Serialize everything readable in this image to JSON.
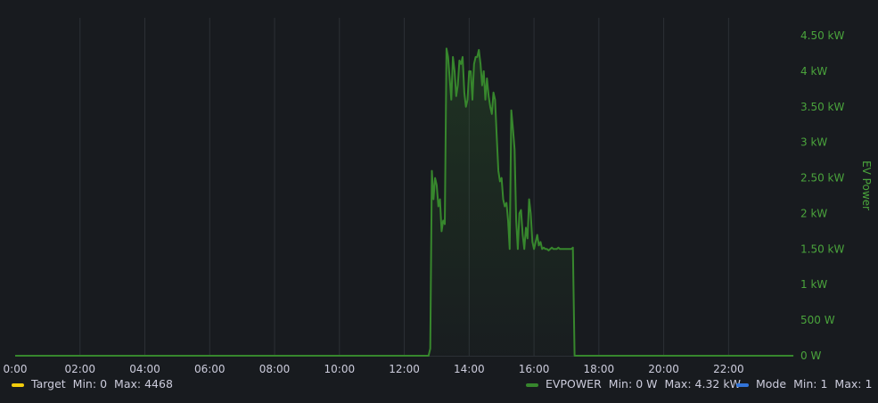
{
  "chart_data": {
    "type": "line",
    "title": "",
    "xlabel": "",
    "ylabel": "EV Power",
    "x_ticks": [
      "0:00",
      "02:00",
      "04:00",
      "06:00",
      "08:00",
      "10:00",
      "12:00",
      "14:00",
      "16:00",
      "18:00",
      "20:00",
      "22:00"
    ],
    "x_tick_hours": [
      0,
      2,
      4,
      6,
      8,
      10,
      12,
      14,
      16,
      18,
      20,
      22
    ],
    "xlim_hours": [
      0,
      24
    ],
    "y_ticks": [
      "0 W",
      "500 W",
      "1 kW",
      "1.50 kW",
      "2 kW",
      "2.50 kW",
      "3 kW",
      "3.50 kW",
      "4 kW",
      "4.50 kW"
    ],
    "y_tick_values_kw": [
      0,
      0.5,
      1,
      1.5,
      2,
      2.5,
      3,
      3.5,
      4,
      4.5
    ],
    "ylim_kw": [
      0,
      4.5
    ],
    "grid": true,
    "legend_position": "bottom",
    "colors": {
      "background": "#181b1f",
      "grid": "#2c3036",
      "evpower": "#37872d",
      "target": "#f2cc0c",
      "mode": "#3274d9",
      "y_axis_text": "#4aa43c"
    },
    "legend": [
      {
        "name": "Target",
        "color": "#f2cc0c",
        "min_label": "Min:",
        "min": "0",
        "max_label": "Max:",
        "max": "4468"
      },
      {
        "name": "EVPOWER",
        "color": "#37872d",
        "min_label": "Min:",
        "min": "0 W",
        "max_label": "Max:",
        "max": "4.32 kW"
      },
      {
        "name": "Mode",
        "color": "#3274d9",
        "min_label": "Min:",
        "min": "1",
        "max_label": "Max:",
        "max": "1"
      }
    ],
    "series": [
      {
        "name": "EVPOWER",
        "unit": "kW",
        "x_hours": [
          0,
          12.75,
          12.8,
          12.85,
          12.9,
          12.95,
          13.0,
          13.05,
          13.1,
          13.15,
          13.2,
          13.25,
          13.3,
          13.35,
          13.4,
          13.45,
          13.5,
          13.55,
          13.6,
          13.65,
          13.7,
          13.75,
          13.8,
          13.85,
          13.9,
          13.95,
          14.0,
          14.05,
          14.1,
          14.15,
          14.2,
          14.25,
          14.3,
          14.35,
          14.4,
          14.45,
          14.5,
          14.55,
          14.6,
          14.65,
          14.7,
          14.75,
          14.8,
          14.85,
          14.9,
          14.95,
          15.0,
          15.05,
          15.1,
          15.15,
          15.2,
          15.25,
          15.3,
          15.35,
          15.4,
          15.45,
          15.5,
          15.55,
          15.6,
          15.65,
          15.7,
          15.75,
          15.8,
          15.85,
          15.9,
          15.95,
          16.0,
          16.05,
          16.1,
          16.15,
          16.2,
          16.25,
          16.3,
          16.35,
          16.4,
          16.45,
          16.5,
          16.55,
          16.6,
          16.65,
          16.7,
          16.75,
          16.8,
          16.85,
          16.9,
          16.95,
          17.0,
          17.05,
          17.1,
          17.15,
          17.2,
          17.25,
          17.3,
          17.35,
          24
        ],
        "values": [
          0,
          0,
          0.1,
          2.6,
          2.2,
          2.5,
          2.4,
          2.1,
          2.2,
          1.75,
          1.9,
          1.85,
          4.32,
          4.2,
          3.9,
          3.6,
          4.2,
          4.0,
          3.65,
          3.8,
          4.15,
          4.1,
          4.2,
          3.7,
          3.5,
          3.6,
          4.0,
          4.0,
          3.6,
          4.1,
          4.2,
          4.2,
          4.3,
          4.1,
          3.8,
          4.0,
          3.6,
          3.9,
          3.65,
          3.5,
          3.4,
          3.7,
          3.6,
          3.1,
          2.6,
          2.45,
          2.5,
          2.2,
          2.1,
          2.15,
          1.9,
          1.5,
          3.45,
          3.2,
          2.9,
          1.9,
          1.5,
          2.0,
          2.05,
          1.7,
          1.5,
          1.8,
          1.65,
          2.2,
          2.0,
          1.6,
          1.5,
          1.6,
          1.7,
          1.55,
          1.6,
          1.5,
          1.52,
          1.5,
          1.5,
          1.48,
          1.5,
          1.52,
          1.5,
          1.5,
          1.5,
          1.52,
          1.5,
          1.5,
          1.5,
          1.5,
          1.5,
          1.5,
          1.5,
          1.5,
          1.52,
          0.0,
          0,
          0,
          0
        ]
      }
    ]
  }
}
